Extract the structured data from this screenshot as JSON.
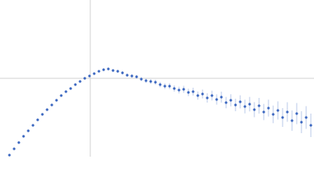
{
  "chart_data": {
    "type": "scatter",
    "color": "#3a66c0",
    "error_color": "#a9bde3",
    "xlim": [
      0,
      4
    ],
    "ylim": [
      0,
      2
    ],
    "x": [
      0.12,
      0.18,
      0.24,
      0.3,
      0.36,
      0.42,
      0.48,
      0.54,
      0.6,
      0.66,
      0.72,
      0.78,
      0.84,
      0.9,
      0.96,
      1.02,
      1.08,
      1.14,
      1.2,
      1.26,
      1.32,
      1.38,
      1.44,
      1.5,
      1.56,
      1.62,
      1.68,
      1.74,
      1.8,
      1.86,
      1.92,
      1.98,
      2.04,
      2.1,
      2.16,
      2.22,
      2.28,
      2.34,
      2.4,
      2.46,
      2.52,
      2.58,
      2.64,
      2.7,
      2.76,
      2.82,
      2.88,
      2.94,
      3.0,
      3.06,
      3.12,
      3.18,
      3.24,
      3.3,
      3.36,
      3.42,
      3.48,
      3.54,
      3.6,
      3.66,
      3.72,
      3.78,
      3.84,
      3.9,
      3.96
    ],
    "values": [
      0.02,
      0.1,
      0.18,
      0.26,
      0.33,
      0.4,
      0.47,
      0.54,
      0.6,
      0.66,
      0.72,
      0.78,
      0.83,
      0.87,
      0.92,
      0.96,
      1.0,
      1.03,
      1.06,
      1.09,
      1.11,
      1.12,
      1.1,
      1.09,
      1.07,
      1.04,
      1.03,
      1.02,
      0.99,
      0.97,
      0.96,
      0.95,
      0.92,
      0.9,
      0.9,
      0.87,
      0.85,
      0.86,
      0.82,
      0.83,
      0.78,
      0.8,
      0.75,
      0.78,
      0.73,
      0.76,
      0.69,
      0.72,
      0.66,
      0.7,
      0.64,
      0.67,
      0.6,
      0.65,
      0.57,
      0.62,
      0.54,
      0.59,
      0.5,
      0.57,
      0.46,
      0.55,
      0.44,
      0.5,
      0.4
    ],
    "errors": [
      0.005,
      0.005,
      0.005,
      0.005,
      0.005,
      0.006,
      0.006,
      0.006,
      0.007,
      0.007,
      0.008,
      0.008,
      0.009,
      0.01,
      0.01,
      0.011,
      0.012,
      0.013,
      0.014,
      0.015,
      0.016,
      0.017,
      0.018,
      0.019,
      0.02,
      0.021,
      0.022,
      0.024,
      0.026,
      0.028,
      0.03,
      0.032,
      0.034,
      0.036,
      0.038,
      0.04,
      0.042,
      0.045,
      0.048,
      0.05,
      0.053,
      0.056,
      0.06,
      0.063,
      0.066,
      0.07,
      0.073,
      0.077,
      0.08,
      0.084,
      0.088,
      0.092,
      0.096,
      0.1,
      0.104,
      0.108,
      0.112,
      0.116,
      0.12,
      0.125,
      0.13,
      0.135,
      0.14,
      0.145,
      0.15
    ]
  }
}
